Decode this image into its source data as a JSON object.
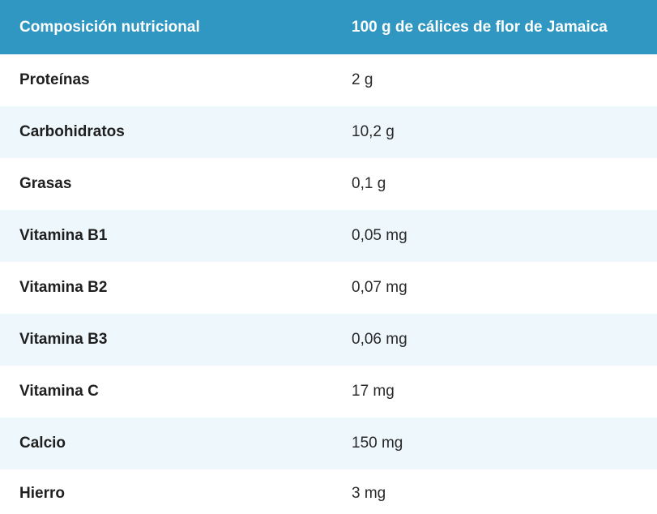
{
  "table": {
    "headers": [
      "Composición nutricional",
      "100 g de cálices de flor de Jamaica"
    ],
    "rows": [
      {
        "name": "Proteínas",
        "value": "2 g"
      },
      {
        "name": "Carbohidratos",
        "value": "10,2 g"
      },
      {
        "name": "Grasas",
        "value": "0,1 g"
      },
      {
        "name": "Vitamina B1",
        "value": "0,05 mg"
      },
      {
        "name": "Vitamina B2",
        "value": "0,07 mg"
      },
      {
        "name": "Vitamina B3",
        "value": "0,06 mg"
      },
      {
        "name": "Vitamina C",
        "value": "17 mg"
      },
      {
        "name": "Calcio",
        "value": "150 mg"
      },
      {
        "name": "Hierro",
        "value": "3 mg"
      }
    ]
  },
  "colors": {
    "header_bg": "#2f97c1",
    "header_text": "#ffffff",
    "row_alt_bg": "#eef7fc"
  }
}
